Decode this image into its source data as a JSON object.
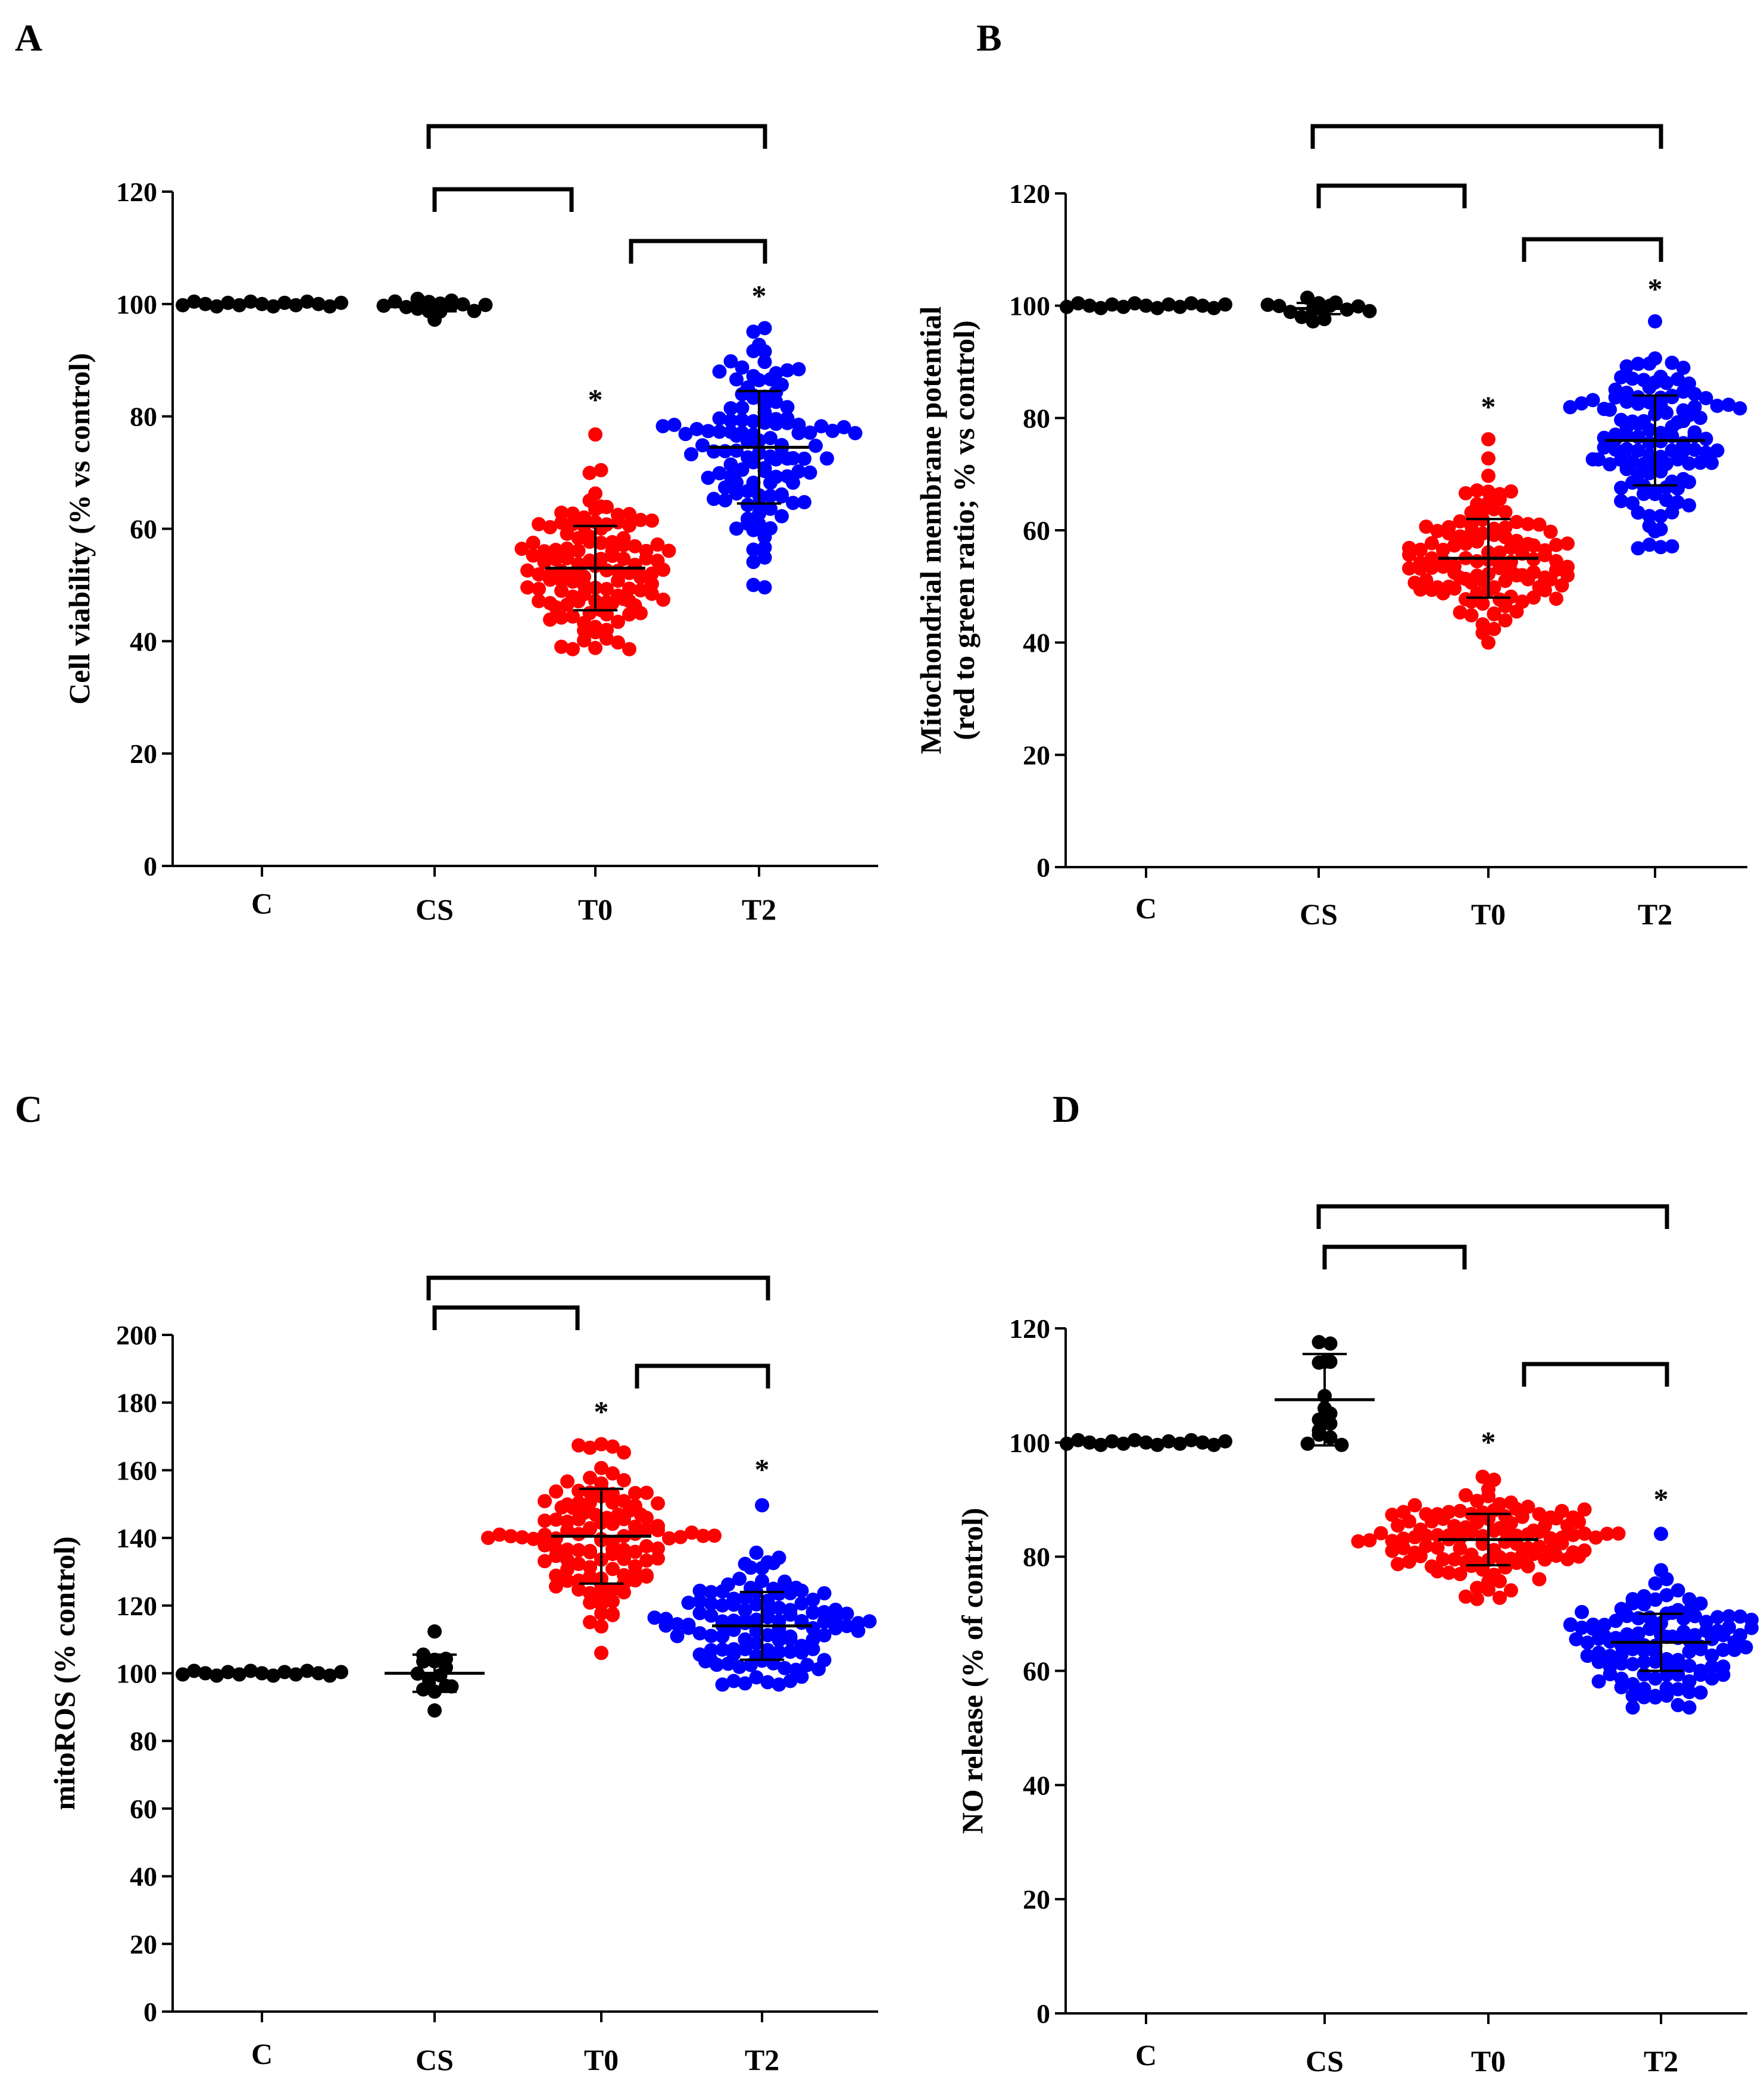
{
  "figure": {
    "colors": {
      "C": "#000000",
      "CS": "#000000",
      "T0": "#ff0000",
      "T2": "#0000ff"
    }
  },
  "chart_data": [
    {
      "panel": "A",
      "type": "scatter",
      "ylabel": "Cell viability (% vs control)",
      "ylabel_lines": [
        "Cell viability (% vs control)"
      ],
      "categories": [
        "C",
        "CS",
        "T0",
        "T2"
      ],
      "ylim": [
        0,
        120
      ],
      "yticks": [
        0,
        20,
        40,
        60,
        80,
        100,
        120
      ],
      "series": [
        {
          "name": "C",
          "mean": 100,
          "sd": 0,
          "min": 100,
          "max": 100,
          "n": 15
        },
        {
          "name": "CS",
          "mean": 99.5,
          "sd": 0.8,
          "min": 97,
          "max": 100.5,
          "n": 15
        },
        {
          "name": "T0",
          "mean": 53,
          "sd": 7.5,
          "min": 39,
          "max": 77,
          "n": 120
        },
        {
          "name": "T2",
          "mean": 74.5,
          "sd": 10,
          "min": 50,
          "max": 95.5,
          "n": 120
        }
      ],
      "significance_stars": [
        "T0",
        "T2"
      ],
      "star_symbol": "*",
      "brackets": [
        [
          "CS",
          "T2"
        ],
        [
          "CS",
          "T0"
        ],
        [
          "T0",
          "T2"
        ]
      ]
    },
    {
      "panel": "B",
      "type": "scatter",
      "ylabel": "Mitochondrial membrane potential (red to green ratio; % vs control)",
      "ylabel_lines": [
        "Mitochondrial membrane potential",
        "(red to green ratio; % vs control)"
      ],
      "categories": [
        "C",
        "CS",
        "T0",
        "T2"
      ],
      "ylim": [
        0,
        120
      ],
      "yticks": [
        0,
        20,
        40,
        60,
        80,
        100,
        120
      ],
      "series": [
        {
          "name": "C",
          "mean": 100,
          "sd": 0,
          "min": 100,
          "max": 100,
          "n": 15
        },
        {
          "name": "CS",
          "mean": 99.5,
          "sd": 1,
          "min": 97,
          "max": 101,
          "n": 15
        },
        {
          "name": "T0",
          "mean": 55,
          "sd": 7,
          "min": 40,
          "max": 76,
          "n": 120
        },
        {
          "name": "T2",
          "mean": 76,
          "sd": 8,
          "min": 57,
          "max": 97,
          "n": 120
        }
      ],
      "significance_stars": [
        "T0",
        "T2"
      ],
      "star_symbol": "*",
      "brackets": [
        [
          "CS",
          "T2"
        ],
        [
          "CS",
          "T0"
        ],
        [
          "T0",
          "T2"
        ]
      ]
    },
    {
      "panel": "C",
      "type": "scatter",
      "ylabel": "mitoROS (% control)",
      "ylabel_lines": [
        "mitoROS (% control)"
      ],
      "categories": [
        "C",
        "CS",
        "T0",
        "T2"
      ],
      "ylim": [
        0,
        200
      ],
      "yticks": [
        0,
        20,
        40,
        60,
        80,
        100,
        120,
        140,
        160,
        180,
        200
      ],
      "series": [
        {
          "name": "C",
          "mean": 100,
          "sd": 0,
          "min": 100,
          "max": 100,
          "n": 15
        },
        {
          "name": "CS",
          "mean": 100,
          "sd": 5.5,
          "min": 89,
          "max": 112,
          "n": 15
        },
        {
          "name": "T0",
          "mean": 140.5,
          "sd": 14,
          "min": 106,
          "max": 167,
          "n": 120
        },
        {
          "name": "T2",
          "mean": 114,
          "sd": 10,
          "min": 97,
          "max": 150,
          "n": 120
        }
      ],
      "significance_stars": [
        "T0",
        "T2"
      ],
      "star_symbol": "*",
      "brackets": [
        [
          "CS",
          "T2"
        ],
        [
          "CS",
          "T0"
        ],
        [
          "T0",
          "T2"
        ]
      ]
    },
    {
      "panel": "D",
      "type": "scatter",
      "ylabel": "NO release (% of control)",
      "ylabel_lines": [
        "NO release (% of control)"
      ],
      "categories": [
        "C",
        "CS",
        "T0",
        "T2"
      ],
      "ylim": [
        0,
        120
      ],
      "yticks": [
        0,
        20,
        40,
        60,
        80,
        100,
        120
      ],
      "series": [
        {
          "name": "C",
          "mean": 100,
          "sd": 0,
          "min": 100,
          "max": 100,
          "n": 15
        },
        {
          "name": "CS",
          "mean": 107.5,
          "sd": 8,
          "min": 100,
          "max": 118,
          "n": 15
        },
        {
          "name": "T0",
          "mean": 83,
          "sd": 4.5,
          "min": 73,
          "max": 94,
          "n": 120
        },
        {
          "name": "T2",
          "mean": 65,
          "sd": 5,
          "min": 54,
          "max": 84,
          "n": 120
        }
      ],
      "significance_stars": [
        "T0",
        "T2"
      ],
      "star_symbol": "*",
      "brackets": [
        [
          "CS",
          "T2"
        ],
        [
          "CS",
          "T0"
        ],
        [
          "T0",
          "T2"
        ]
      ]
    }
  ]
}
